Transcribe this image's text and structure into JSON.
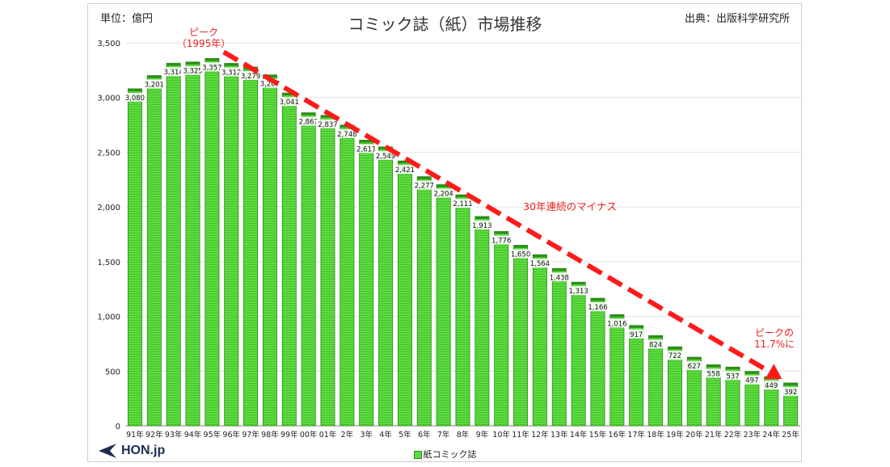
{
  "header": {
    "title": "コミック誌（紙）市場推移",
    "unit": "単位：億円",
    "source": "出典：出版科学研究所"
  },
  "logo": {
    "text": "HON.jp"
  },
  "legend": {
    "label": "紙コミック誌"
  },
  "annotations": {
    "peak_line1": "ピーク",
    "peak_line2": "（1995年）",
    "trend": "30年連続のマイナス",
    "end_line1": "ピークの",
    "end_line2": "11.7%に"
  },
  "colors": {
    "bar": "#5ddb3f",
    "bar_border": "#2e8d1a",
    "arrow": "#ff1a1a",
    "annotation": "#e8211b"
  },
  "chart_data": {
    "type": "bar",
    "title": "コミック誌（紙）市場推移",
    "ylabel": "単位：億円",
    "ylim": [
      0,
      3500
    ],
    "yticks": [
      "0",
      "500",
      "1,000",
      "1,500",
      "2,000",
      "2,500",
      "3,000",
      "3,500"
    ],
    "grid": true,
    "legend_position": "bottom",
    "categories": [
      "91年",
      "92年",
      "93年",
      "94年",
      "95年",
      "96年",
      "97年",
      "98年",
      "99年",
      "00年",
      "01年",
      "2年",
      "3年",
      "4年",
      "5年",
      "6年",
      "7年",
      "8年",
      "9年",
      "10年",
      "11年",
      "12年",
      "13年",
      "14年",
      "15年",
      "16年",
      "17年",
      "18年",
      "19年",
      "20年",
      "21年",
      "22年",
      "23年",
      "24年",
      "25年"
    ],
    "series": [
      {
        "name": "紙コミック誌",
        "values": [
          3080,
          3201,
          3314,
          3325,
          3357,
          3312,
          3279,
          3207,
          3041,
          2861,
          2837,
          2748,
          2611,
          2549,
          2421,
          2277,
          2204,
          2111,
          1913,
          1776,
          1650,
          1564,
          1438,
          1313,
          1166,
          1016,
          917,
          824,
          722,
          627,
          558,
          537,
          497,
          449,
          392
        ],
        "labels": [
          "3,080",
          "3,201",
          "3,314",
          "3,325",
          "3,357",
          "3,312",
          "3,279",
          "3,207",
          "3,041",
          "2,861",
          "2,837",
          "2,748",
          "2,611",
          "2,549",
          "2,421",
          "2,277",
          "2,204",
          "2,111",
          "1,913",
          "1,776",
          "1,650",
          "1,564",
          "1,438",
          "1,313",
          "1,166",
          "1,016",
          "917",
          "824",
          "722",
          "627",
          "558",
          "537",
          "497",
          "449",
          "392"
        ]
      }
    ]
  }
}
